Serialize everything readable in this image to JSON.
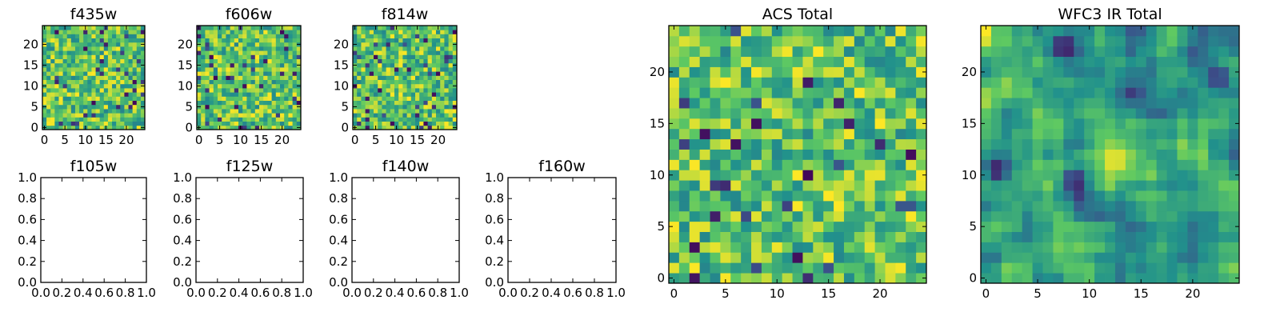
{
  "figure": {
    "colormap": "viridis",
    "colormap_stops": [
      "#440154",
      "#3b528b",
      "#21918c",
      "#5ec962",
      "#fde725"
    ]
  },
  "chart_data": [
    {
      "type": "heatmap",
      "title": "f435w",
      "grid": false,
      "xlim": [
        -0.5,
        24.5
      ],
      "ylim": [
        -0.5,
        24.5
      ],
      "xticks": [
        "0",
        "5",
        "10",
        "15",
        "20"
      ],
      "yticks": [
        "0",
        "5",
        "10",
        "15",
        "20"
      ],
      "grid_size": [
        25,
        25
      ],
      "value_range": [
        0,
        1
      ],
      "values_description": "noise field, mostly green/yellow with scattered dark purple pixels"
    },
    {
      "type": "heatmap",
      "title": "f606w",
      "grid": false,
      "xlim": [
        -0.5,
        24.5
      ],
      "ylim": [
        -0.5,
        24.5
      ],
      "xticks": [
        "0",
        "5",
        "10",
        "15",
        "20"
      ],
      "yticks": [
        "0",
        "5",
        "10",
        "15",
        "20"
      ],
      "grid_size": [
        25,
        25
      ],
      "value_range": [
        0,
        1
      ]
    },
    {
      "type": "heatmap",
      "title": "f814w",
      "grid": false,
      "xlim": [
        -0.5,
        24.5
      ],
      "ylim": [
        -0.5,
        24.5
      ],
      "xticks": [
        "0",
        "5",
        "10",
        "15",
        "20"
      ],
      "yticks": [
        "0",
        "5",
        "10",
        "15",
        "20"
      ],
      "grid_size": [
        25,
        25
      ],
      "value_range": [
        0,
        1
      ]
    },
    {
      "type": "scatter",
      "title": "f105w",
      "xlim": [
        0,
        1
      ],
      "ylim": [
        0,
        1
      ],
      "xticks": [
        "0.0",
        "0.2",
        "0.4",
        "0.6",
        "0.8",
        "1.0"
      ],
      "yticks": [
        "0.0",
        "0.2",
        "0.4",
        "0.6",
        "0.8",
        "1.0"
      ],
      "series": []
    },
    {
      "type": "scatter",
      "title": "f125w",
      "xlim": [
        0,
        1
      ],
      "ylim": [
        0,
        1
      ],
      "xticks": [
        "0.0",
        "0.2",
        "0.4",
        "0.6",
        "0.8",
        "1.0"
      ],
      "yticks": [
        "0.0",
        "0.2",
        "0.4",
        "0.6",
        "0.8",
        "1.0"
      ],
      "series": []
    },
    {
      "type": "scatter",
      "title": "f140w",
      "xlim": [
        0,
        1
      ],
      "ylim": [
        0,
        1
      ],
      "xticks": [
        "0.0",
        "0.2",
        "0.4",
        "0.6",
        "0.8",
        "1.0"
      ],
      "yticks": [
        "0.0",
        "0.2",
        "0.4",
        "0.6",
        "0.8",
        "1.0"
      ],
      "series": []
    },
    {
      "type": "scatter",
      "title": "f160w",
      "xlim": [
        0,
        1
      ],
      "ylim": [
        0,
        1
      ],
      "xticks": [
        "0.0",
        "0.2",
        "0.4",
        "0.6",
        "0.8",
        "1.0"
      ],
      "yticks": [
        "0.0",
        "0.2",
        "0.4",
        "0.6",
        "0.8",
        "1.0"
      ],
      "series": []
    },
    {
      "type": "heatmap",
      "title": "ACS Total",
      "grid": false,
      "xlim": [
        -0.5,
        24.5
      ],
      "ylim": [
        -0.5,
        24.5
      ],
      "xticks": [
        "0",
        "5",
        "10",
        "15",
        "20"
      ],
      "yticks": [
        "0",
        "5",
        "10",
        "15",
        "20"
      ],
      "grid_size": [
        25,
        25
      ],
      "value_range": [
        0,
        1
      ]
    },
    {
      "type": "heatmap",
      "title": "WFC3 IR Total",
      "grid": false,
      "xlim": [
        -0.5,
        24.5
      ],
      "ylim": [
        -0.5,
        24.5
      ],
      "xticks": [
        "0",
        "5",
        "10",
        "15",
        "20"
      ],
      "yticks": [
        "0",
        "5",
        "10",
        "15",
        "20"
      ],
      "grid_size": [
        25,
        25
      ],
      "value_range": [
        0,
        1
      ],
      "features": [
        {
          "label": "bright source",
          "x": 12.5,
          "y": 11.5,
          "value": 1.0
        },
        {
          "label": "dark region",
          "x": 7.5,
          "y": 22.5,
          "value": 0.0
        },
        {
          "label": "dark region",
          "x": 1,
          "y": 10.5,
          "value": 0.05
        },
        {
          "label": "dark region",
          "x": 8.5,
          "y": 9.5,
          "value": 0.05
        },
        {
          "label": "dark region",
          "x": 22.5,
          "y": 19.5,
          "value": 0.1
        }
      ]
    }
  ]
}
